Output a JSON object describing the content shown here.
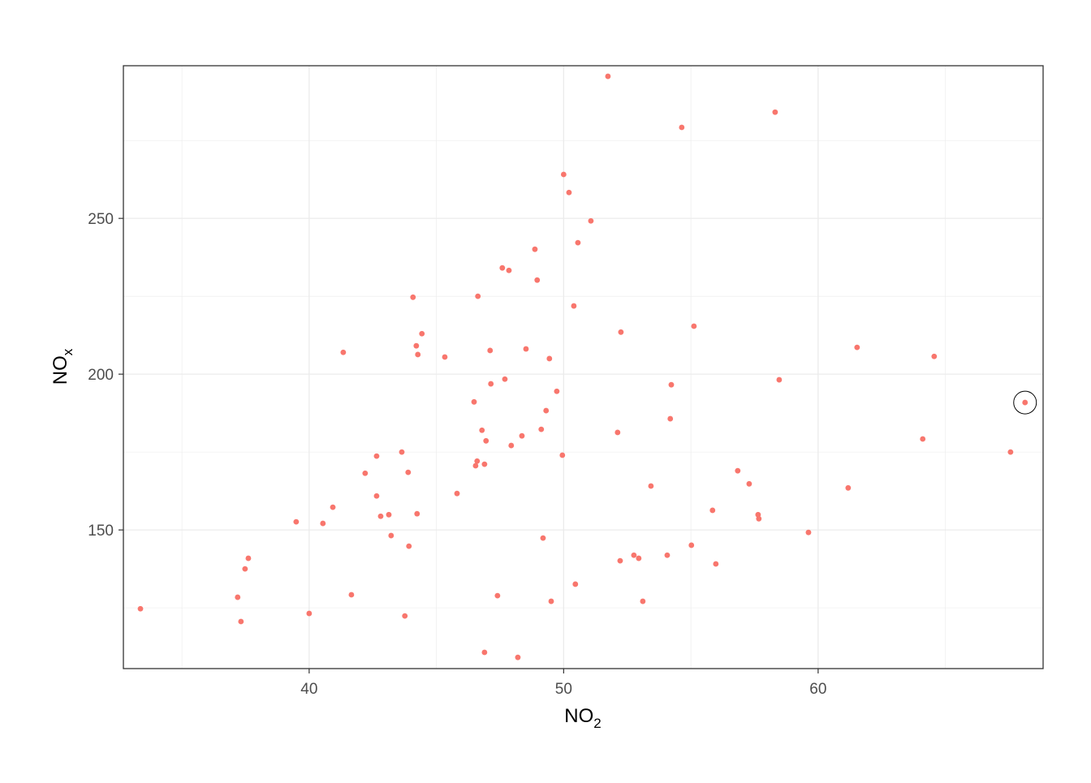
{
  "chart_data": {
    "type": "scatter",
    "title": "",
    "xlabel": "NO",
    "xlabel_sub": "2",
    "ylabel": "NO",
    "ylabel_sub": "x",
    "xlim": [
      32.7,
      68.84
    ],
    "ylim": [
      105.5,
      299
    ],
    "x_ticks": [
      40,
      50,
      60
    ],
    "y_ticks": [
      150,
      200,
      250
    ],
    "x_tick_labels": [
      "40",
      "50",
      "60"
    ],
    "y_tick_labels": [
      "150",
      "200",
      "250"
    ],
    "x_minor": [
      35,
      45,
      55,
      65
    ],
    "y_minor": [
      125,
      175,
      225,
      275
    ],
    "grid": true,
    "point_color": "#F8766D",
    "grid_color": "#EBEBEB",
    "highlighted_point": {
      "x": 68.13,
      "y": 190.9
    },
    "points": [
      [
        33.37,
        124.7
      ],
      [
        37.19,
        128.4
      ],
      [
        37.32,
        120.6
      ],
      [
        37.48,
        137.5
      ],
      [
        37.61,
        140.9
      ],
      [
        39.49,
        152.6
      ],
      [
        40.0,
        123.2
      ],
      [
        40.54,
        152.1
      ],
      [
        40.93,
        157.3
      ],
      [
        41.34,
        207.0
      ],
      [
        41.66,
        129.2
      ],
      [
        42.2,
        168.2
      ],
      [
        42.65,
        173.7
      ],
      [
        42.65,
        160.9
      ],
      [
        42.81,
        154.4
      ],
      [
        43.13,
        154.9
      ],
      [
        43.22,
        148.2
      ],
      [
        43.64,
        175.0
      ],
      [
        43.76,
        122.4
      ],
      [
        43.89,
        168.5
      ],
      [
        43.92,
        144.8
      ],
      [
        44.08,
        224.7
      ],
      [
        44.21,
        209.1
      ],
      [
        44.24,
        155.2
      ],
      [
        44.27,
        206.3
      ],
      [
        44.43,
        213.0
      ],
      [
        45.33,
        205.5
      ],
      [
        45.81,
        161.7
      ],
      [
        46.48,
        191.1
      ],
      [
        46.54,
        170.6
      ],
      [
        46.6,
        172.1
      ],
      [
        46.63,
        225.0
      ],
      [
        46.79,
        182.0
      ],
      [
        46.89,
        171.1
      ],
      [
        46.89,
        110.7
      ],
      [
        46.95,
        178.6
      ],
      [
        47.11,
        207.6
      ],
      [
        47.14,
        196.9
      ],
      [
        47.4,
        128.9
      ],
      [
        47.59,
        234.1
      ],
      [
        47.69,
        198.4
      ],
      [
        47.85,
        233.3
      ],
      [
        47.94,
        177.1
      ],
      [
        48.2,
        109.1
      ],
      [
        48.36,
        180.2
      ],
      [
        48.52,
        208.1
      ],
      [
        48.87,
        240.1
      ],
      [
        48.96,
        230.2
      ],
      [
        49.12,
        182.3
      ],
      [
        49.19,
        147.4
      ],
      [
        49.31,
        188.3
      ],
      [
        49.44,
        205.0
      ],
      [
        49.51,
        127.1
      ],
      [
        49.73,
        194.5
      ],
      [
        49.95,
        174.0
      ],
      [
        50.0,
        264.1
      ],
      [
        50.21,
        258.3
      ],
      [
        50.4,
        221.9
      ],
      [
        50.46,
        132.6
      ],
      [
        50.56,
        242.2
      ],
      [
        51.07,
        249.2
      ],
      [
        51.74,
        295.6
      ],
      [
        52.12,
        181.3
      ],
      [
        52.22,
        140.1
      ],
      [
        52.25,
        213.5
      ],
      [
        52.76,
        141.9
      ],
      [
        52.95,
        140.9
      ],
      [
        53.11,
        127.1
      ],
      [
        53.43,
        164.1
      ],
      [
        54.07,
        141.9
      ],
      [
        54.19,
        185.7
      ],
      [
        54.23,
        196.6
      ],
      [
        54.64,
        279.2
      ],
      [
        55.02,
        145.1
      ],
      [
        55.12,
        215.4
      ],
      [
        55.85,
        156.3
      ],
      [
        55.98,
        139.1
      ],
      [
        56.84,
        169.0
      ],
      [
        57.29,
        164.8
      ],
      [
        57.64,
        154.9
      ],
      [
        57.67,
        153.6
      ],
      [
        58.31,
        284.1
      ],
      [
        58.47,
        198.2
      ],
      [
        59.62,
        149.2
      ],
      [
        61.18,
        163.5
      ],
      [
        61.53,
        208.6
      ],
      [
        64.11,
        179.2
      ],
      [
        64.56,
        205.7
      ],
      [
        67.56,
        175.0
      ],
      [
        68.13,
        190.9
      ]
    ]
  }
}
